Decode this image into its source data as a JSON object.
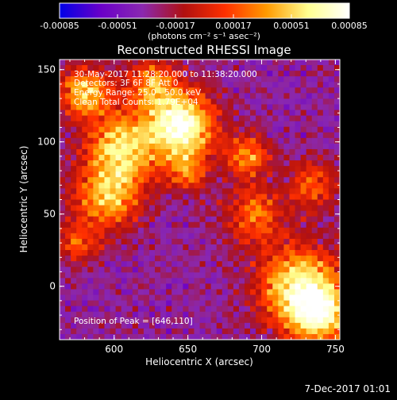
{
  "chart_data": {
    "type": "heatmap",
    "title": "Reconstructed RHESSI Image",
    "xlabel": "Heliocentric X (arcsec)",
    "ylabel": "Heliocentric Y (arcsec)",
    "xlim": [
      563,
      753
    ],
    "ylim": [
      -37,
      157
    ],
    "x_ticks": [
      600,
      650,
      700,
      750
    ],
    "y_ticks": [
      0,
      50,
      100,
      150
    ],
    "colorbar": {
      "min": -0.00085,
      "max": 0.00085,
      "tick_values": [
        -0.00085,
        -0.00051,
        -0.00017,
        0.00017,
        0.00051,
        0.00085
      ],
      "tick_labels": [
        "-0.00085",
        "-0.00051",
        "-0.00017",
        "0.00017",
        "0.00051",
        "0.00085"
      ],
      "unit_label": "(photons cm⁻² s⁻¹ asec⁻²)",
      "colors": [
        "#0000e6",
        "#6a00c8",
        "#8a28b0",
        "#b01010",
        "#ff3000",
        "#ff9a00",
        "#ffff90",
        "#ffffff"
      ]
    },
    "annotations": {
      "time": "30-May-2017 11:28:20.000 to 11:38:20.000",
      "detectors": "Detectors: 3F 6F 8F  Att 0",
      "energy": "Energy Range: 25.0 - 50.0 keV",
      "method": "Clean     Total Counts: 1.79E+04",
      "peak": "Position of Peak = [646,110]"
    },
    "peak_position": [
      646,
      110
    ],
    "emission_regions": [
      {
        "x": 646,
        "y": 112,
        "sigma": 16,
        "amp": 1.0
      },
      {
        "x": 605,
        "y": 95,
        "sigma": 18,
        "amp": 0.75
      },
      {
        "x": 580,
        "y": 135,
        "sigma": 12,
        "amp": 0.7
      },
      {
        "x": 625,
        "y": 140,
        "sigma": 12,
        "amp": 0.55
      },
      {
        "x": 595,
        "y": 60,
        "sigma": 16,
        "amp": 0.6
      },
      {
        "x": 690,
        "y": 90,
        "sigma": 10,
        "amp": 0.6
      },
      {
        "x": 695,
        "y": 50,
        "sigma": 14,
        "amp": 0.5
      },
      {
        "x": 735,
        "y": 70,
        "sigma": 12,
        "amp": 0.45
      },
      {
        "x": 725,
        "y": 0,
        "sigma": 20,
        "amp": 0.8
      },
      {
        "x": 740,
        "y": -20,
        "sigma": 15,
        "amp": 0.7
      },
      {
        "x": 650,
        "y": 80,
        "sigma": 10,
        "amp": 0.45
      },
      {
        "x": 575,
        "y": 30,
        "sigma": 10,
        "amp": 0.4
      }
    ]
  },
  "footer": {
    "date": "7-Dec-2017 01:01"
  }
}
